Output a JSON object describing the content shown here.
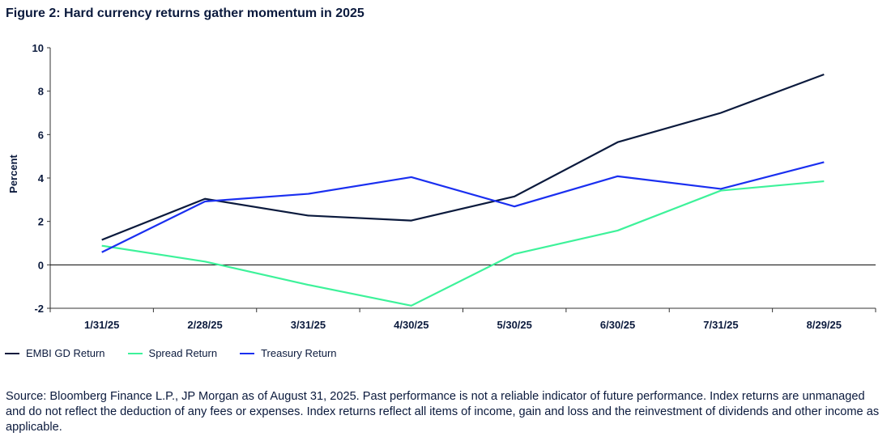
{
  "title": "Figure 2: Hard currency returns gather momentum in 2025",
  "chart_data": {
    "type": "line",
    "title": "Figure 2: Hard currency returns gather momentum in 2025",
    "xlabel": "",
    "ylabel": "Percent",
    "ylim": [
      -2,
      10
    ],
    "yticks": [
      -2,
      0,
      2,
      4,
      6,
      8,
      10
    ],
    "categories": [
      "1/31/25",
      "2/28/25",
      "3/31/25",
      "4/30/25",
      "5/30/25",
      "6/30/25",
      "7/31/25",
      "8/29/25"
    ],
    "grid": false,
    "legend_position": "bottom-left",
    "series": [
      {
        "name": "EMBI GD Return",
        "color": "#0b1a3d",
        "values": [
          1.15,
          3.04,
          2.27,
          2.04,
          3.15,
          5.65,
          7.0,
          8.77
        ]
      },
      {
        "name": "Spread Return",
        "color": "#3df29a",
        "values": [
          0.88,
          0.15,
          -0.92,
          -1.88,
          0.5,
          1.58,
          3.42,
          3.85
        ]
      },
      {
        "name": "Treasury Return",
        "color": "#1a2ff0",
        "values": [
          0.58,
          2.92,
          3.27,
          4.04,
          2.69,
          4.08,
          3.5,
          4.73
        ]
      }
    ]
  },
  "source": "Source: Bloomberg Finance L.P., JP Morgan as of August 31, 2025. Past performance is not a reliable indicator of future performance. Index returns are unmanaged and do not reflect the deduction of any fees or expenses. Index returns reflect all items of income, gain and loss and the reinvestment of dividends and other income as applicable."
}
